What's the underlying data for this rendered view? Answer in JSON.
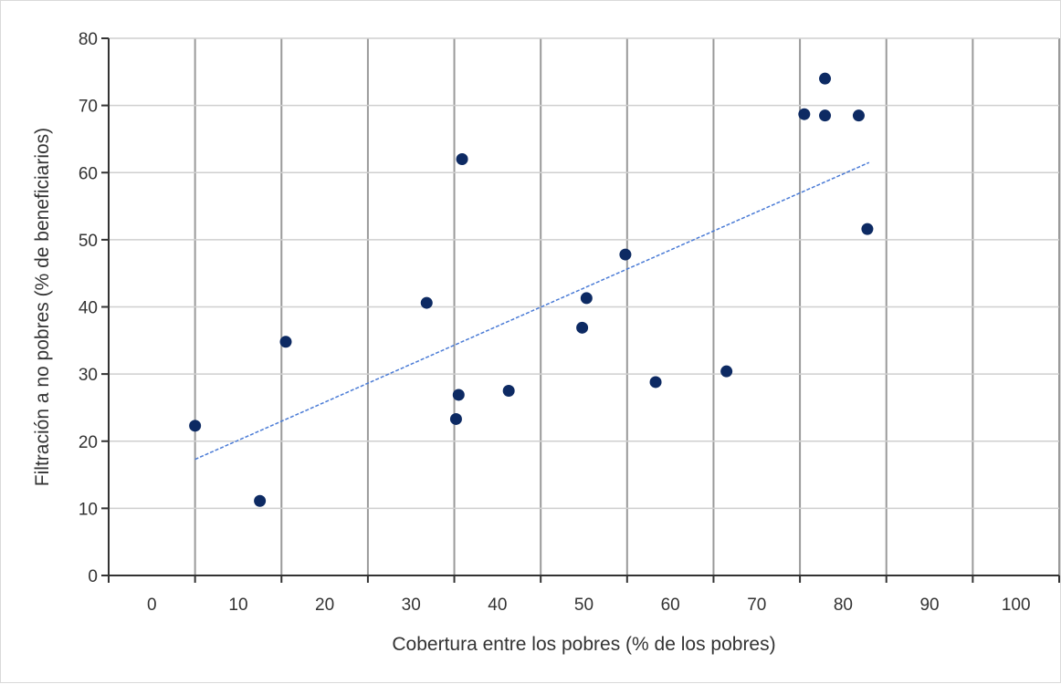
{
  "chart_data": {
    "type": "scatter",
    "title": "",
    "xlabel": "Cobertura entre los pobres (% de los pobres)",
    "ylabel": "Filtración a no pobres (% de beneficiarios)",
    "xlim": [
      0,
      110
    ],
    "ylim": [
      0,
      80
    ],
    "x_tick_labels": [
      "0",
      "10",
      "20",
      "30",
      "40",
      "50",
      "60",
      "70",
      "80",
      "90",
      "100"
    ],
    "y_ticks": [
      0,
      10,
      20,
      30,
      40,
      50,
      60,
      70,
      80
    ],
    "grid": true,
    "legend": "none",
    "point_color": "#0d2a63",
    "trend_color": "#4a7bd6",
    "points": [
      {
        "x": 10,
        "y": 22.3
      },
      {
        "x": 17.5,
        "y": 11.1
      },
      {
        "x": 20.5,
        "y": 34.8
      },
      {
        "x": 36.8,
        "y": 40.6
      },
      {
        "x": 40.2,
        "y": 23.3
      },
      {
        "x": 40.5,
        "y": 26.9
      },
      {
        "x": 40.9,
        "y": 62.0
      },
      {
        "x": 46.3,
        "y": 27.5
      },
      {
        "x": 54.8,
        "y": 36.9
      },
      {
        "x": 55.3,
        "y": 41.3
      },
      {
        "x": 59.8,
        "y": 47.8
      },
      {
        "x": 63.3,
        "y": 28.8
      },
      {
        "x": 71.5,
        "y": 30.4
      },
      {
        "x": 80.5,
        "y": 68.7
      },
      {
        "x": 82.9,
        "y": 74.0
      },
      {
        "x": 82.9,
        "y": 68.5
      },
      {
        "x": 86.8,
        "y": 68.5
      },
      {
        "x": 87.8,
        "y": 51.6
      }
    ],
    "trendline": {
      "x": [
        10,
        88
      ],
      "y": [
        17.3,
        61.5
      ]
    }
  }
}
